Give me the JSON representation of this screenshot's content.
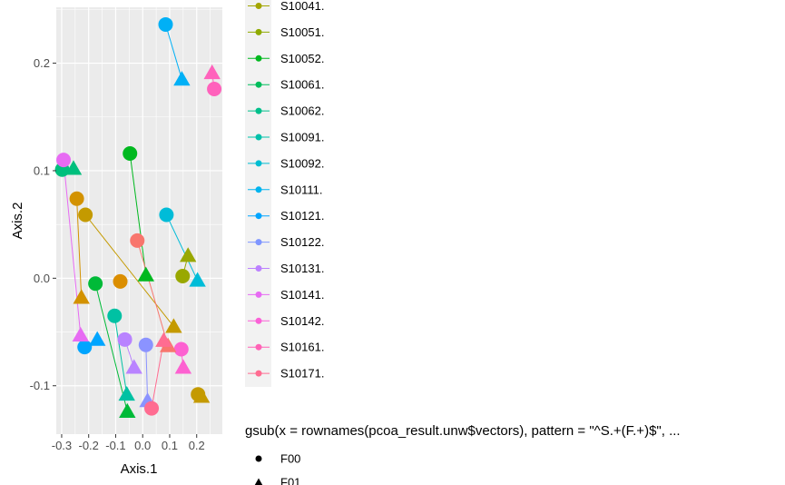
{
  "chart_data": {
    "type": "scatter",
    "title": "",
    "xlabel": "Axis.1",
    "ylabel": "Axis.2",
    "xlim": [
      -0.32,
      0.295
    ],
    "ylim": [
      -0.145,
      0.252
    ],
    "x_ticks": [
      -0.3,
      -0.2,
      -0.1,
      0.0,
      0.1,
      0.2
    ],
    "x_tick_labels": [
      "-0.3",
      "-0.2",
      "-0.1",
      "0.0",
      "0.1",
      "0.2"
    ],
    "y_ticks": [
      -0.1,
      0.0,
      0.1,
      0.2
    ],
    "y_tick_labels": [
      "-0.1",
      "0.0",
      "0.1",
      "0.2"
    ],
    "grid": true,
    "legend_placement": "right",
    "color_legend_items": [
      "S10041.",
      "S10051.",
      "S10052.",
      "S10061.",
      "S10062.",
      "S10091.",
      "S10092.",
      "S10111.",
      "S10121.",
      "S10122.",
      "S10131.",
      "S10141.",
      "S10142.",
      "S10161.",
      "S10171."
    ],
    "shape_legend_title": "gsub(x = rownames(pcoa_result.unw$vectors), pattern = \"^S.+(F.+)$\", ...",
    "shape_legend_items": [
      "F00",
      "F01"
    ],
    "series": [
      {
        "name": "S10041.",
        "color": "#C49A00",
        "points": [
          [
            -0.212,
            0.059
          ],
          [
            0.115,
            -0.045
          ]
        ]
      },
      {
        "name": "S10041.",
        "color": "#C49A00",
        "points": [
          [
            0.205,
            -0.108
          ],
          [
            0.218,
            -0.11
          ]
        ]
      },
      {
        "name": "S10041.",
        "color": "#D39200",
        "points": [
          [
            -0.244,
            0.074
          ],
          [
            -0.227,
            -0.018
          ]
        ]
      },
      {
        "name": "S10041.",
        "color": "#DB8E00",
        "points": [
          [
            -0.083,
            -0.003
          ]
        ]
      },
      {
        "name": "S10051.",
        "color": "#99A800",
        "points": [
          [
            0.148,
            0.002
          ],
          [
            0.168,
            0.021
          ]
        ]
      },
      {
        "name": "S10052.",
        "color": "#00B81F",
        "points": [
          [
            -0.047,
            0.116
          ],
          [
            0.012,
            0.003
          ]
        ]
      },
      {
        "name": "S10061.",
        "color": "#00BA38",
        "points": [
          [
            -0.175,
            -0.005
          ],
          [
            -0.057,
            -0.124
          ]
        ]
      },
      {
        "name": "S10062.",
        "color": "#00BF7D",
        "points": [
          [
            -0.298,
            0.101
          ],
          [
            -0.256,
            0.102
          ]
        ]
      },
      {
        "name": "S10091.",
        "color": "#00C1A3",
        "points": [
          [
            -0.104,
            -0.035
          ],
          [
            -0.059,
            -0.108
          ]
        ]
      },
      {
        "name": "S10092.",
        "color": "#00BCD8",
        "points": [
          [
            0.088,
            0.059
          ],
          [
            0.203,
            -0.002
          ]
        ]
      },
      {
        "name": "S10111.",
        "color": "#00B0F6",
        "points": [
          [
            0.085,
            0.236
          ],
          [
            0.145,
            0.185
          ]
        ]
      },
      {
        "name": "S10121.",
        "color": "#00A5FF",
        "points": [
          [
            -0.215,
            -0.064
          ],
          [
            -0.168,
            -0.057
          ]
        ]
      },
      {
        "name": "S10122.",
        "color": "#8B93FF",
        "points": [
          [
            0.012,
            -0.062
          ],
          [
            0.018,
            -0.114
          ]
        ]
      },
      {
        "name": "S10131.",
        "color": "#B983FF",
        "points": [
          [
            -0.066,
            -0.057
          ],
          [
            -0.032,
            -0.083
          ]
        ]
      },
      {
        "name": "S10141.",
        "color": "#E76BF3",
        "points": [
          [
            -0.293,
            0.11
          ],
          [
            -0.23,
            -0.053
          ]
        ]
      },
      {
        "name": "S10142.",
        "color": "#FF62BC",
        "points": [
          [
            0.265,
            0.176
          ],
          [
            0.257,
            0.191
          ]
        ]
      },
      {
        "name": "S10161.",
        "color": "#FD61D1",
        "points": [
          [
            0.143,
            -0.066
          ],
          [
            0.15,
            -0.083
          ]
        ]
      },
      {
        "name": "S10171.",
        "color": "#F8766D",
        "points": [
          [
            -0.02,
            0.035
          ],
          [
            0.094,
            -0.063
          ]
        ]
      },
      {
        "name": "S10171.",
        "color": "#FF6C91",
        "points": [
          [
            0.033,
            -0.121
          ],
          [
            0.078,
            -0.058
          ]
        ]
      }
    ]
  }
}
